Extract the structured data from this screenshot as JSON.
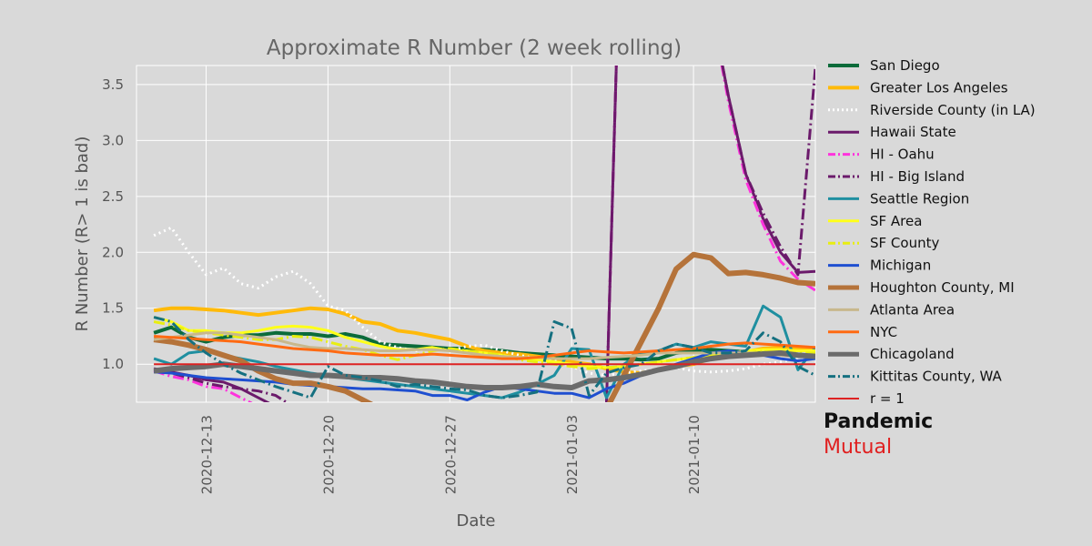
{
  "chart_data": {
    "type": "line",
    "title": "Approximate R Number (2 week rolling)",
    "xlabel": "Date",
    "ylabel": "R Number (R> 1 is bad)",
    "x_start": "2020-12-10",
    "x_end": "2021-01-16",
    "xlim": [
      "2020-12-09",
      "2021-01-17"
    ],
    "ylim": [
      0.66,
      3.67
    ],
    "x_ticks": [
      "2020-12-13",
      "2020-12-20",
      "2020-12-27",
      "2021-01-03",
      "2021-01-10"
    ],
    "y_ticks": [
      "1.0",
      "1.5",
      "2.0",
      "2.5",
      "3.0",
      "3.5"
    ],
    "grid": true,
    "legend_position": "right",
    "series": [
      {
        "name": "San Diego",
        "color": "#0b6b3a",
        "style": "solid",
        "width": 4,
        "values": [
          1.28,
          1.33,
          1.24,
          1.2,
          1.24,
          1.26,
          1.26,
          1.28,
          1.27,
          1.27,
          1.25,
          1.27,
          1.24,
          1.18,
          1.17,
          1.16,
          1.15,
          1.14,
          1.14,
          1.13,
          1.12,
          1.1,
          1.09,
          1.08,
          1.07,
          1.06,
          1.05,
          1.05,
          1.04,
          1.05,
          1.1,
          1.12,
          1.13,
          1.12,
          1.11,
          1.1,
          1.12,
          1.13,
          1.13
        ]
      },
      {
        "name": "Greater Los Angeles",
        "color": "#ffba0a",
        "style": "solid",
        "width": 4,
        "values": [
          1.48,
          1.5,
          1.5,
          1.49,
          1.48,
          1.46,
          1.44,
          1.46,
          1.48,
          1.5,
          1.49,
          1.45,
          1.38,
          1.36,
          1.3,
          1.28,
          1.25,
          1.22,
          1.16,
          1.12,
          1.1,
          1.09,
          1.07,
          1.05,
          1.02,
          1.0,
          0.96,
          0.93,
          0.92,
          0.95,
          0.98,
          1.0,
          1.05,
          1.08,
          1.11,
          1.14,
          1.15,
          1.14,
          1.13
        ]
      },
      {
        "name": "Riverside County (in LA)",
        "color": "#ffffff",
        "style": "dotted",
        "width": 3,
        "values": [
          2.15,
          2.22,
          2.0,
          1.8,
          1.86,
          1.72,
          1.68,
          1.78,
          1.83,
          1.72,
          1.52,
          1.48,
          1.33,
          1.2,
          1.15,
          1.12,
          1.14,
          1.12,
          1.16,
          1.17,
          1.12,
          1.08,
          1.05,
          1.03,
          0.98,
          0.92,
          0.9,
          0.92,
          0.94,
          0.96,
          0.97,
          0.94,
          0.93,
          0.94,
          0.96,
          1.0,
          1.02,
          1.05,
          1.08
        ]
      },
      {
        "name": "Hawaii State",
        "color": "#6b1a6b",
        "style": "solid",
        "width": 3,
        "values": [
          0.96,
          0.93,
          0.9,
          0.86,
          0.84,
          0.78,
          0.7,
          0.62,
          null,
          null,
          null,
          null,
          null,
          null,
          null,
          null,
          null,
          null,
          null,
          null,
          null,
          null,
          null,
          null,
          null,
          null,
          0.66,
          6.0,
          null,
          null,
          null,
          null,
          4.2,
          3.4,
          2.7,
          2.3,
          2.0,
          1.82,
          1.83
        ]
      },
      {
        "name": "HI - Oahu",
        "color": "#ff33dd",
        "style": "dashdot",
        "width": 3,
        "values": [
          0.94,
          0.89,
          0.86,
          0.8,
          0.78,
          0.7,
          0.62,
          null,
          null,
          null,
          null,
          null,
          null,
          null,
          null,
          null,
          null,
          null,
          null,
          null,
          null,
          null,
          null,
          null,
          null,
          null,
          0.66,
          6.0,
          null,
          null,
          null,
          null,
          4.2,
          3.35,
          2.65,
          2.25,
          1.92,
          1.76,
          1.66
        ]
      },
      {
        "name": "HI - Big Island",
        "color": "#6b1a6b",
        "style": "dashdot",
        "width": 3,
        "values": [
          0.95,
          0.92,
          0.88,
          0.83,
          0.8,
          0.78,
          0.76,
          0.72,
          0.62,
          null,
          null,
          null,
          null,
          null,
          null,
          null,
          null,
          null,
          null,
          null,
          null,
          null,
          null,
          null,
          null,
          null,
          0.66,
          6.0,
          null,
          null,
          null,
          null,
          4.2,
          3.4,
          2.7,
          2.35,
          2.05,
          1.8,
          3.65
        ]
      },
      {
        "name": "Seattle Region",
        "color": "#1f8fa0",
        "style": "solid",
        "width": 3,
        "values": [
          1.05,
          1.0,
          1.1,
          1.12,
          1.08,
          1.05,
          1.02,
          0.98,
          0.95,
          0.92,
          0.9,
          0.88,
          0.86,
          0.84,
          0.82,
          0.8,
          0.78,
          0.76,
          0.74,
          0.72,
          0.7,
          0.75,
          0.82,
          0.9,
          1.14,
          1.13,
          0.7,
          1.0,
          1.1,
          1.12,
          1.18,
          1.15,
          1.2,
          1.18,
          1.16,
          1.52,
          1.42,
          0.95,
          1.15
        ]
      },
      {
        "name": "SF Area",
        "color": "#ffff1a",
        "style": "solid",
        "width": 3,
        "values": [
          1.42,
          1.38,
          1.3,
          1.3,
          1.28,
          1.28,
          1.3,
          1.33,
          1.34,
          1.33,
          1.3,
          1.24,
          1.2,
          1.16,
          1.13,
          1.13,
          1.15,
          1.12,
          1.12,
          1.1,
          1.08,
          1.05,
          1.04,
          1.02,
          1.0,
          0.98,
          0.97,
          0.98,
          1.0,
          1.02,
          1.04,
          1.06,
          1.08,
          1.1,
          1.12,
          1.13,
          1.13,
          1.12,
          1.12
        ]
      },
      {
        "name": "SF County",
        "color": "#e8ee10",
        "style": "dashdot",
        "width": 3,
        "values": [
          1.38,
          1.35,
          1.3,
          1.28,
          1.26,
          1.24,
          1.22,
          1.22,
          1.25,
          1.24,
          1.2,
          1.16,
          1.13,
          1.08,
          1.04,
          1.08,
          1.12,
          1.14,
          1.12,
          1.1,
          1.08,
          1.04,
          1.02,
          1.0,
          0.98,
          0.96,
          0.97,
          0.98,
          1.0,
          1.02,
          1.04,
          1.06,
          1.07,
          1.08,
          1.1,
          1.12,
          1.1,
          1.1,
          1.1
        ]
      },
      {
        "name": "Michigan",
        "color": "#1f4fd0",
        "style": "solid",
        "width": 3,
        "values": [
          0.93,
          0.92,
          0.9,
          0.88,
          0.87,
          0.86,
          0.85,
          0.84,
          0.82,
          0.81,
          0.8,
          0.79,
          0.78,
          0.78,
          0.77,
          0.76,
          0.72,
          0.72,
          0.68,
          0.75,
          0.8,
          0.78,
          0.76,
          0.74,
          0.74,
          0.7,
          0.78,
          0.83,
          0.9,
          0.95,
          1.0,
          1.05,
          1.1,
          1.12,
          1.1,
          1.08,
          1.05,
          1.03,
          1.05
        ]
      },
      {
        "name": "Houghton County, MI",
        "color": "#b5733a",
        "style": "solid",
        "width": 6,
        "values": [
          1.22,
          1.2,
          1.17,
          1.13,
          1.08,
          1.03,
          0.94,
          0.87,
          0.83,
          0.83,
          0.8,
          0.76,
          0.68,
          0.6,
          null,
          null,
          null,
          null,
          null,
          null,
          null,
          null,
          null,
          null,
          null,
          null,
          0.6,
          0.9,
          1.2,
          1.5,
          1.85,
          1.98,
          1.95,
          1.81,
          1.82,
          1.8,
          1.77,
          1.73,
          1.72
        ]
      },
      {
        "name": "Atlanta Area",
        "color": "#c8b88c",
        "style": "solid",
        "width": 3,
        "values": [
          1.22,
          1.24,
          1.26,
          1.28,
          1.28,
          1.26,
          1.24,
          1.22,
          1.18,
          1.15,
          1.14,
          1.14,
          1.13,
          1.12,
          1.12,
          1.13,
          1.13,
          1.12,
          1.1,
          1.08,
          1.07,
          1.06,
          1.06,
          1.05,
          1.05,
          1.05,
          1.06,
          1.07,
          1.08,
          1.1,
          1.1,
          1.1,
          1.1,
          1.1,
          1.1,
          1.1,
          1.08,
          1.07,
          1.06
        ]
      },
      {
        "name": "NYC",
        "color": "#ff6a12",
        "style": "solid",
        "width": 3,
        "values": [
          1.25,
          1.24,
          1.23,
          1.22,
          1.21,
          1.2,
          1.18,
          1.16,
          1.14,
          1.13,
          1.12,
          1.1,
          1.09,
          1.08,
          1.08,
          1.08,
          1.09,
          1.08,
          1.07,
          1.06,
          1.05,
          1.05,
          1.06,
          1.08,
          1.1,
          1.12,
          1.11,
          1.1,
          1.11,
          1.12,
          1.13,
          1.14,
          1.16,
          1.18,
          1.19,
          1.18,
          1.17,
          1.16,
          1.15
        ]
      },
      {
        "name": "Chicagoland",
        "color": "#6b6b6b",
        "style": "solid",
        "width": 6,
        "values": [
          0.94,
          0.96,
          0.97,
          0.98,
          1.0,
          0.98,
          0.96,
          0.94,
          0.92,
          0.9,
          0.9,
          0.89,
          0.88,
          0.88,
          0.87,
          0.85,
          0.84,
          0.82,
          0.8,
          0.79,
          0.79,
          0.8,
          0.82,
          0.8,
          0.79,
          0.85,
          0.86,
          0.88,
          0.91,
          0.95,
          0.98,
          1.02,
          1.05,
          1.07,
          1.08,
          1.09,
          1.1,
          1.08,
          1.07
        ]
      },
      {
        "name": "Kittitas County, WA",
        "color": "#157080",
        "style": "dashdot",
        "width": 3,
        "values": [
          1.42,
          1.38,
          1.22,
          1.1,
          1.0,
          0.92,
          0.86,
          0.8,
          0.75,
          0.7,
          0.98,
          0.9,
          0.88,
          0.85,
          0.8,
          0.82,
          0.8,
          0.78,
          0.77,
          0.72,
          0.7,
          0.72,
          0.75,
          1.38,
          1.32,
          0.72,
          0.92,
          0.97,
          1.0,
          1.12,
          1.18,
          1.15,
          1.1,
          1.1,
          1.12,
          1.28,
          1.2,
          0.98,
          0.9
        ]
      },
      {
        "name": "r = 1",
        "color": "#dd2222",
        "style": "solid",
        "width": 2,
        "values": [
          1.0,
          1.0,
          1.0,
          1.0,
          1.0,
          1.0,
          1.0,
          1.0,
          1.0,
          1.0,
          1.0,
          1.0,
          1.0,
          1.0,
          1.0,
          1.0,
          1.0,
          1.0,
          1.0,
          1.0,
          1.0,
          1.0,
          1.0,
          1.0,
          1.0,
          1.0,
          1.0,
          1.0,
          1.0,
          1.0,
          1.0,
          1.0,
          1.0,
          1.0,
          1.0,
          1.0,
          1.0,
          1.0,
          1.0
        ]
      }
    ]
  },
  "brand": {
    "line1": "Pandemic",
    "line2": "Mutual",
    "line2_color": "#e02020"
  }
}
